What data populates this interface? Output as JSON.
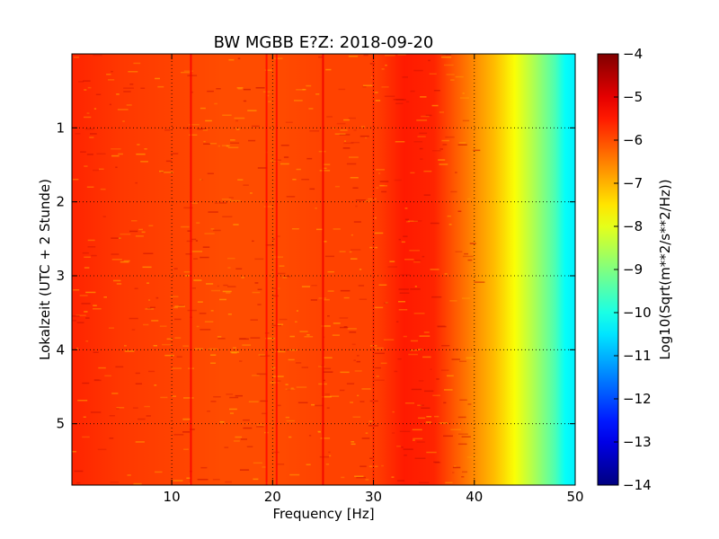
{
  "chart_data": {
    "type": "heatmap",
    "title": "BW MGBB E?Z: 2018-09-20",
    "xlabel": "Frequency [Hz]",
    "ylabel": "Lokalzeit (UTC + 2 Stunde)",
    "colorbar_label": "Log10(Sqrt(m**2/s**2/Hz))",
    "xlim": [
      0.1,
      50
    ],
    "ylim": [
      5.83,
      0.0
    ],
    "x_ticks": [
      10,
      20,
      30,
      40,
      50
    ],
    "x_tick_labels": [
      "10",
      "20",
      "30",
      "40",
      "50"
    ],
    "y_ticks": [
      1,
      2,
      3,
      4,
      5
    ],
    "y_tick_labels": [
      "1",
      "2",
      "3",
      "4",
      "5"
    ],
    "grid": true,
    "colormap": "jet",
    "color_range": [
      -14,
      -4
    ],
    "colorbar_ticks": [
      -4,
      -5,
      -6,
      -7,
      -8,
      -9,
      -10,
      -11,
      -12,
      -13,
      -14
    ],
    "colorbar_tick_labels": [
      "−4",
      "−5",
      "−6",
      "−7",
      "−8",
      "−9",
      "−10",
      "−11",
      "−12",
      "−13",
      "−14"
    ],
    "frequency_profile": {
      "frequency_hz": [
        0.1,
        5,
        10,
        15,
        20,
        25,
        30,
        33,
        36,
        38,
        40,
        42,
        44,
        46,
        48,
        49,
        50
      ],
      "log10_amplitude": [
        -5.6,
        -5.8,
        -5.9,
        -6.0,
        -6.0,
        -5.9,
        -5.9,
        -5.5,
        -5.6,
        -6.1,
        -6.6,
        -7.1,
        -7.8,
        -8.6,
        -9.5,
        -10.2,
        -10.4
      ]
    },
    "spectral_lines": [
      {
        "frequency_hz": 11.9,
        "log10_amplitude": -5.2
      },
      {
        "frequency_hz": 19.4,
        "log10_amplitude": -5.3
      },
      {
        "frequency_hz": 20.4,
        "log10_amplitude": -5.3
      },
      {
        "frequency_hz": 25.0,
        "log10_amplitude": -5.1
      },
      {
        "frequency_hz": 30.0,
        "log10_amplitude": -5.6
      }
    ]
  }
}
